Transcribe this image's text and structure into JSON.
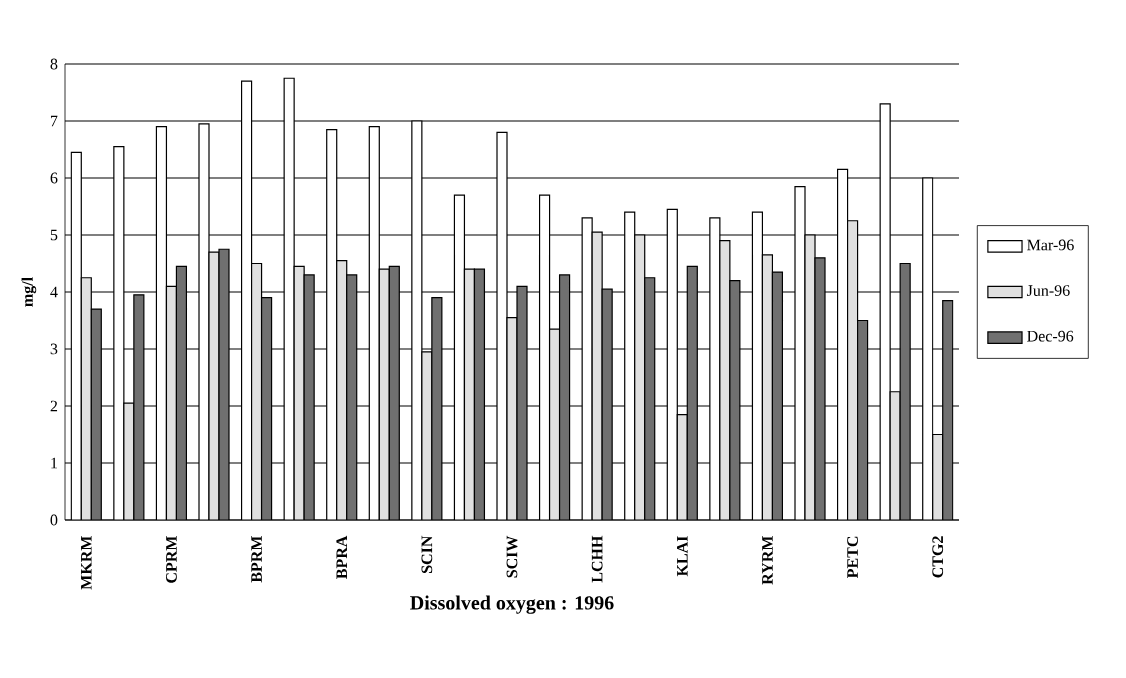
{
  "chart_data": {
    "type": "bar",
    "xlabel": "Dissolved oxygen : 1996",
    "ylabel": "mg/l",
    "categories": [
      "MKRM",
      null,
      "CPRM",
      null,
      "BPRM",
      null,
      "BPRA",
      null,
      "SCIN",
      null,
      "SCIW",
      null,
      "LCHH",
      null,
      "KLAI",
      null,
      "RYRM",
      null,
      "PETC",
      null,
      "CTG2"
    ],
    "series": [
      {
        "name": "Mar-96",
        "color": "#ffffff",
        "values": [
          6.45,
          6.55,
          6.9,
          6.95,
          7.7,
          7.75,
          6.85,
          6.9,
          7.0,
          5.7,
          6.8,
          5.7,
          5.3,
          5.4,
          5.45,
          5.3,
          5.4,
          5.85,
          6.15,
          7.3,
          6.0
        ]
      },
      {
        "name": "Jun-96",
        "color": "#e0e0e0",
        "values": [
          4.25,
          2.05,
          4.1,
          4.7,
          4.5,
          4.45,
          4.55,
          4.4,
          2.95,
          4.4,
          3.55,
          3.35,
          5.05,
          5.0,
          1.85,
          4.9,
          4.65,
          5.0,
          5.25,
          2.25,
          1.5
        ]
      },
      {
        "name": "Dec-96",
        "color": "#707070",
        "values": [
          3.7,
          3.95,
          4.45,
          4.75,
          3.9,
          4.3,
          4.3,
          4.45,
          3.9,
          4.4,
          4.1,
          4.3,
          4.05,
          4.25,
          4.45,
          4.2,
          4.35,
          4.6,
          3.5,
          4.5,
          3.85
        ]
      }
    ],
    "ylim": [
      0,
      8
    ],
    "yticks": [
      0,
      1,
      2,
      3,
      4,
      5,
      6,
      7,
      8
    ],
    "grid": "y",
    "legend": "right"
  }
}
